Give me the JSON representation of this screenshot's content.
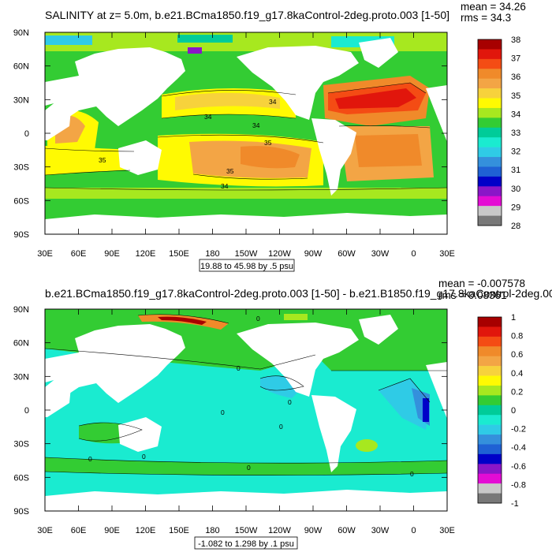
{
  "chart_data": [
    {
      "type": "heatmap",
      "title": "SALINITY at z=   5.0m, b.e21.BCma1850.f19_g17.8kaControl-2deg.proto.003 [1-50]",
      "stats": {
        "mean": "mean = 34.26",
        "rms": "rms = 34.3"
      },
      "range_label": "19.88 to 45.98 by .5 psu",
      "xlabel": "",
      "ylabel": "",
      "x_ticks": [
        "30E",
        "60E",
        "90E",
        "120E",
        "150E",
        "180",
        "150W",
        "120W",
        "90W",
        "60W",
        "30W",
        "0",
        "30E"
      ],
      "y_ticks": [
        "90N",
        "60N",
        "30N",
        "0",
        "30S",
        "60S",
        "90S"
      ],
      "xlim": [
        30,
        390
      ],
      "ylim": [
        -90,
        90
      ],
      "colorbar": {
        "labels": [
          "38",
          "37",
          "36",
          "35",
          "34",
          "33",
          "32",
          "31",
          "30",
          "29",
          "28"
        ],
        "colors": [
          "#A70000",
          "#E1160C",
          "#F44C14",
          "#F08A2A",
          "#F3A545",
          "#F7D23C",
          "#FFFA02",
          "#A7E81F",
          "#33CC33",
          "#00CC99",
          "#1AEBD0",
          "#2FCBE6",
          "#3490DC",
          "#1F61D4",
          "#0000C8",
          "#8A16C8",
          "#E40CD4",
          "#C8C8C8",
          "#787878"
        ]
      },
      "contour_labels": [
        "34",
        "34",
        "34",
        "35",
        "35",
        "35",
        "34"
      ]
    },
    {
      "type": "heatmap",
      "title": "b.e21.BCma1850.f19_g17.8kaControl-2deg.proto.003 [1-50] - b.e21.B1850.f19_g17.8kaControl-2deg.00",
      "stats": {
        "mean": "mean = -0.007578",
        "rms": "rms = 0.08361"
      },
      "range_label": "-1.082 to 1.298 by .1 psu",
      "xlabel": "",
      "ylabel": "",
      "x_ticks": [
        "30E",
        "60E",
        "90E",
        "120E",
        "150E",
        "180",
        "150W",
        "120W",
        "90W",
        "60W",
        "30W",
        "0",
        "30E"
      ],
      "y_ticks": [
        "90N",
        "60N",
        "30N",
        "0",
        "30S",
        "60S",
        "90S"
      ],
      "xlim": [
        30,
        390
      ],
      "ylim": [
        -90,
        90
      ],
      "colorbar": {
        "labels": [
          "1",
          "0.8",
          "0.6",
          "0.4",
          "0.2",
          "0",
          "-0.2",
          "-0.4",
          "-0.6",
          "-0.8",
          "-1"
        ],
        "colors": [
          "#A70000",
          "#E1160C",
          "#F44C14",
          "#F08A2A",
          "#F3A545",
          "#F7D23C",
          "#FFFA02",
          "#A7E81F",
          "#33CC33",
          "#00CC99",
          "#1AEBD0",
          "#2FCBE6",
          "#3490DC",
          "#1F61D4",
          "#0000C8",
          "#8A16C8",
          "#E40CD4",
          "#C8C8C8",
          "#787878"
        ]
      },
      "contour_labels": [
        "0",
        "0",
        "0",
        "0",
        "0",
        "0",
        "0",
        "0",
        "0"
      ]
    }
  ]
}
